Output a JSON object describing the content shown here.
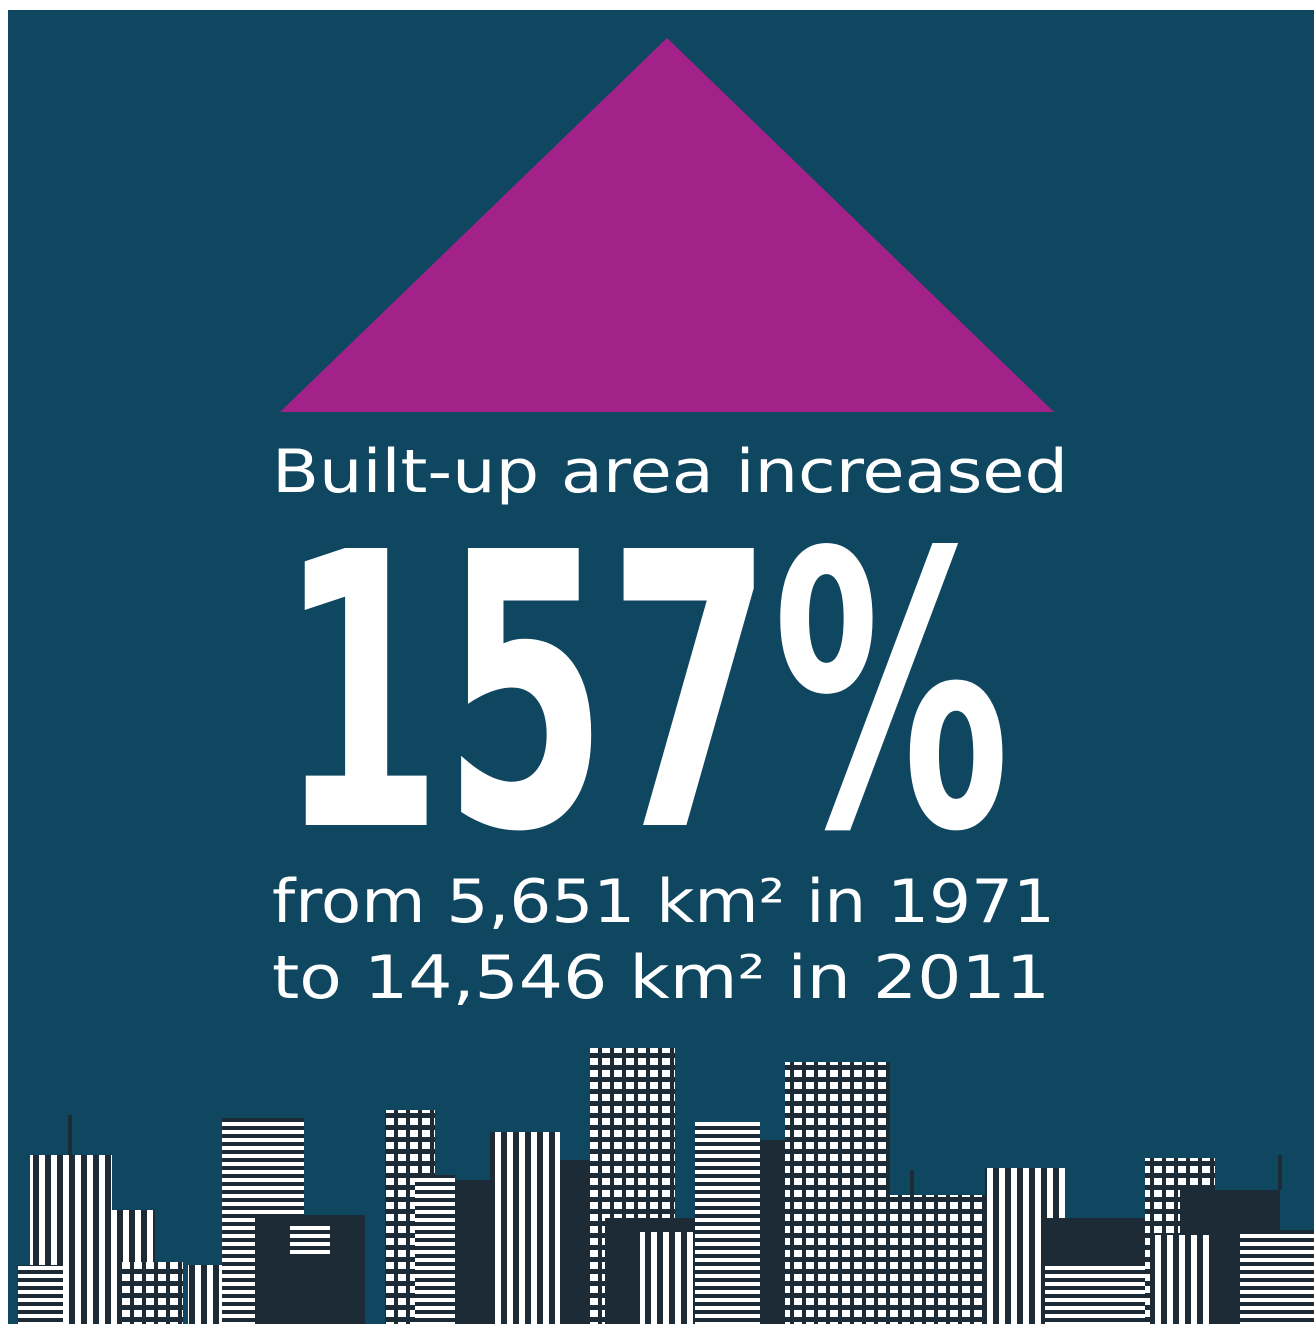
{
  "header": {
    "title": "Built-up area increased"
  },
  "headline": {
    "value": "157%"
  },
  "detail": {
    "lines": [
      "from 5,651 km² in 1971",
      "to 14,546 km² in 2011"
    ]
  }
}
